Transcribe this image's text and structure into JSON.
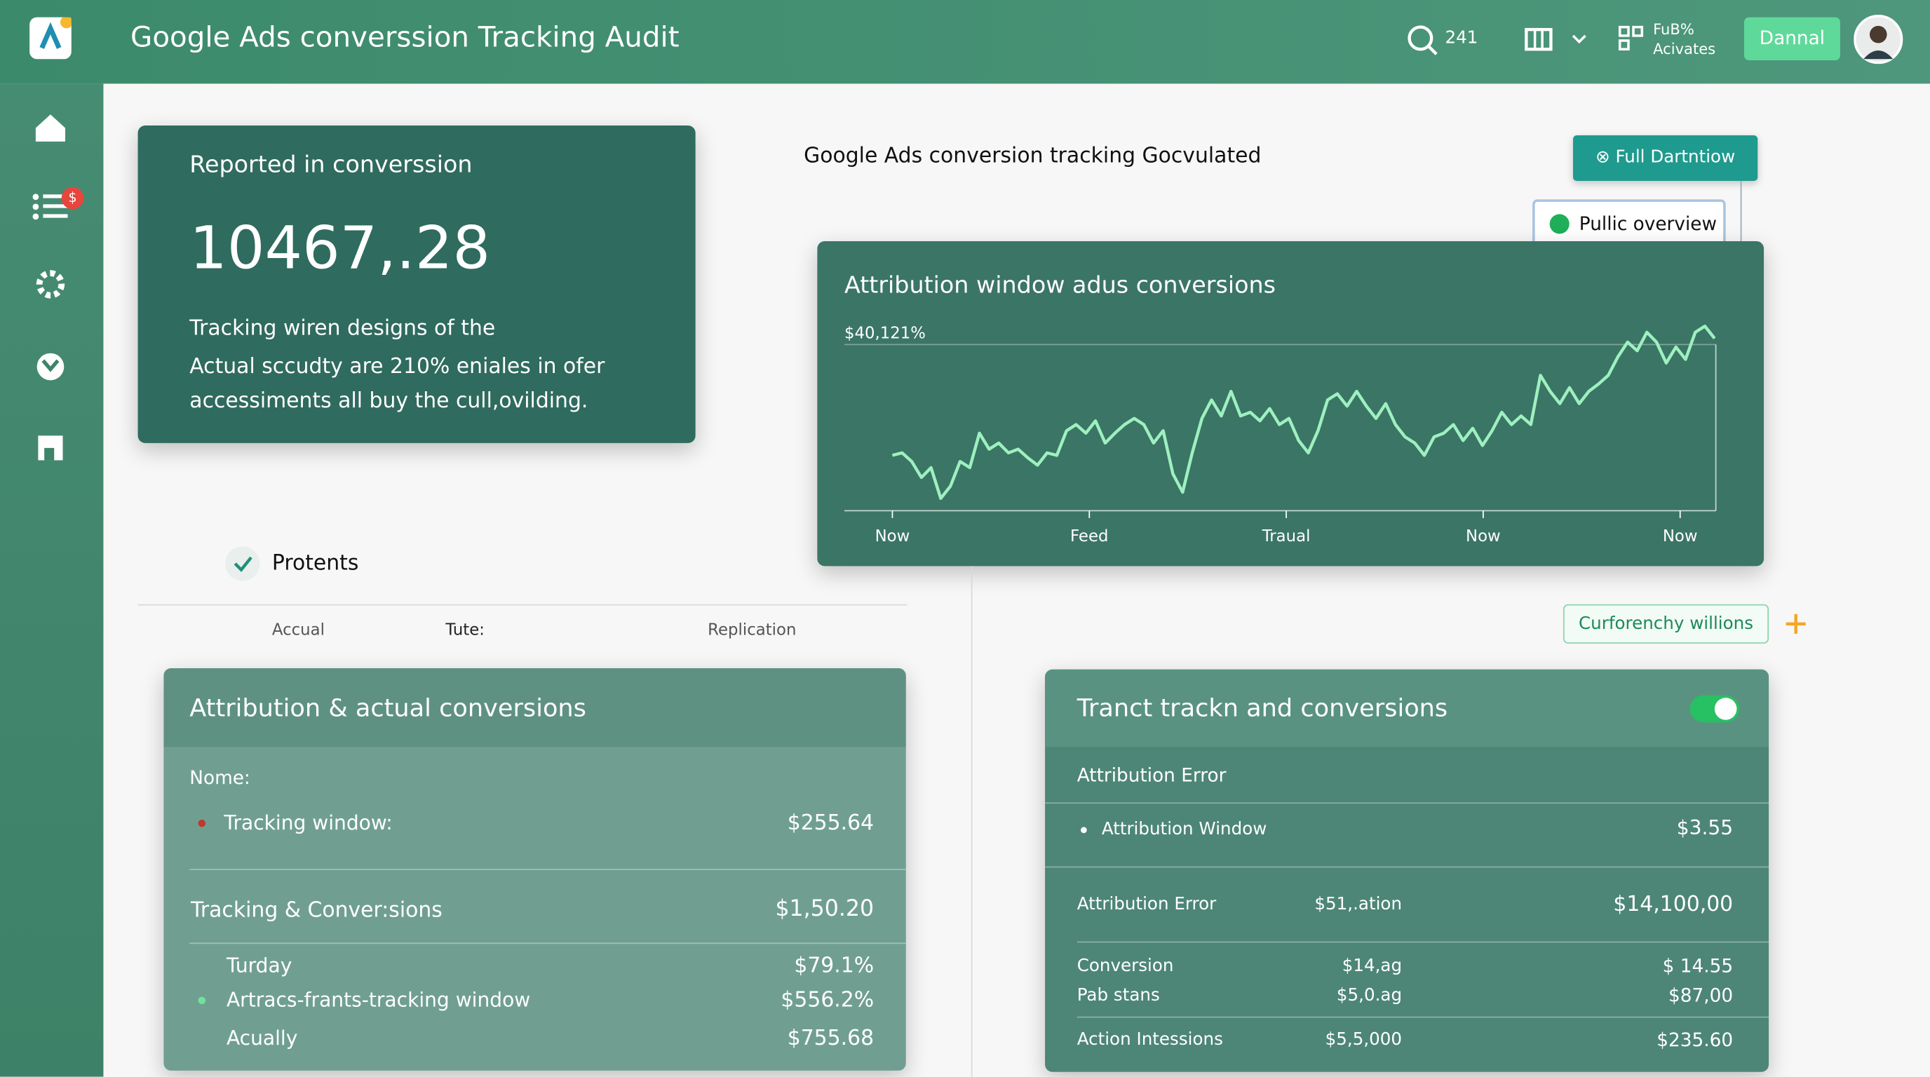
{
  "header": {
    "title": "Google Ads converssion Tracking Audit",
    "count": "241",
    "menu_label": "FuB%",
    "menu_sub": "Acivates",
    "button": "Dannal"
  },
  "sidebar": {
    "badge": "$"
  },
  "summary_card": {
    "title": "Reported in converssion",
    "value": "10467,.28",
    "lines": [
      "Tracking wiren designs of the",
      "Actual sccudty are 210% eniales in ofer",
      "accessiments all buy the cull,ovilding."
    ]
  },
  "chart_section": {
    "heading": "Google Ads conversion tracking Gocvulated",
    "full_button": "Full Dartntiow",
    "popup": "Pullic overview"
  },
  "chart_data": {
    "type": "line",
    "title": "Attribution window adus conversions",
    "annotation": "$40,121%",
    "color": "#9ef0c0",
    "xtick_labels": [
      "Now",
      "Feed",
      "Traual",
      "Now",
      "Now"
    ],
    "values": [
      45,
      47,
      40,
      27,
      35,
      10,
      20,
      40,
      35,
      63,
      50,
      55,
      47,
      50,
      43,
      37,
      47,
      45,
      65,
      70,
      63,
      73,
      55,
      63,
      70,
      75,
      70,
      55,
      65,
      30,
      15,
      47,
      75,
      90,
      77,
      97,
      77,
      80,
      73,
      83,
      70,
      75,
      57,
      47,
      65,
      90,
      95,
      85,
      97,
      85,
      75,
      87,
      70,
      60,
      55,
      45,
      60,
      63,
      70,
      57,
      67,
      53,
      65,
      80,
      70,
      77,
      70,
      110,
      97,
      87,
      100,
      87,
      97,
      103,
      110,
      125,
      137,
      130,
      145,
      137,
      120,
      133,
      123,
      145,
      150,
      140
    ]
  },
  "checklist": {
    "label": "Protents"
  },
  "columns": [
    "Accual",
    "Tute:",
    "Replication"
  ],
  "left_table": {
    "title": "Attribution & actual conversions",
    "rows": [
      [
        "Nome:",
        ""
      ],
      [
        "Tracking window:",
        "$255.64"
      ],
      [
        "Tracking & Conver:sions",
        "$1,50.20"
      ],
      [
        "Turday",
        "$79.1%"
      ],
      [
        "Artracs-frants-tracking window",
        "$556.2%"
      ],
      [
        "Acually",
        "$755.68"
      ]
    ]
  },
  "right_panel": {
    "chip": "Curforenchy willions",
    "title": "Tranct trackn and conversions",
    "rows": [
      [
        "Attribution Error",
        "",
        ""
      ],
      [
        "Attribution Window",
        "",
        "$3.55"
      ],
      [
        "Attribution Error",
        "$51,.ation",
        "$14,100,00"
      ],
      [
        "Conversion",
        "$14,ag",
        "$ 14.55"
      ],
      [
        "Pab stans",
        "$5,0.ag",
        "$87,00"
      ],
      [
        "Action Intessions",
        "$5,5,000",
        "$235.60"
      ]
    ]
  }
}
